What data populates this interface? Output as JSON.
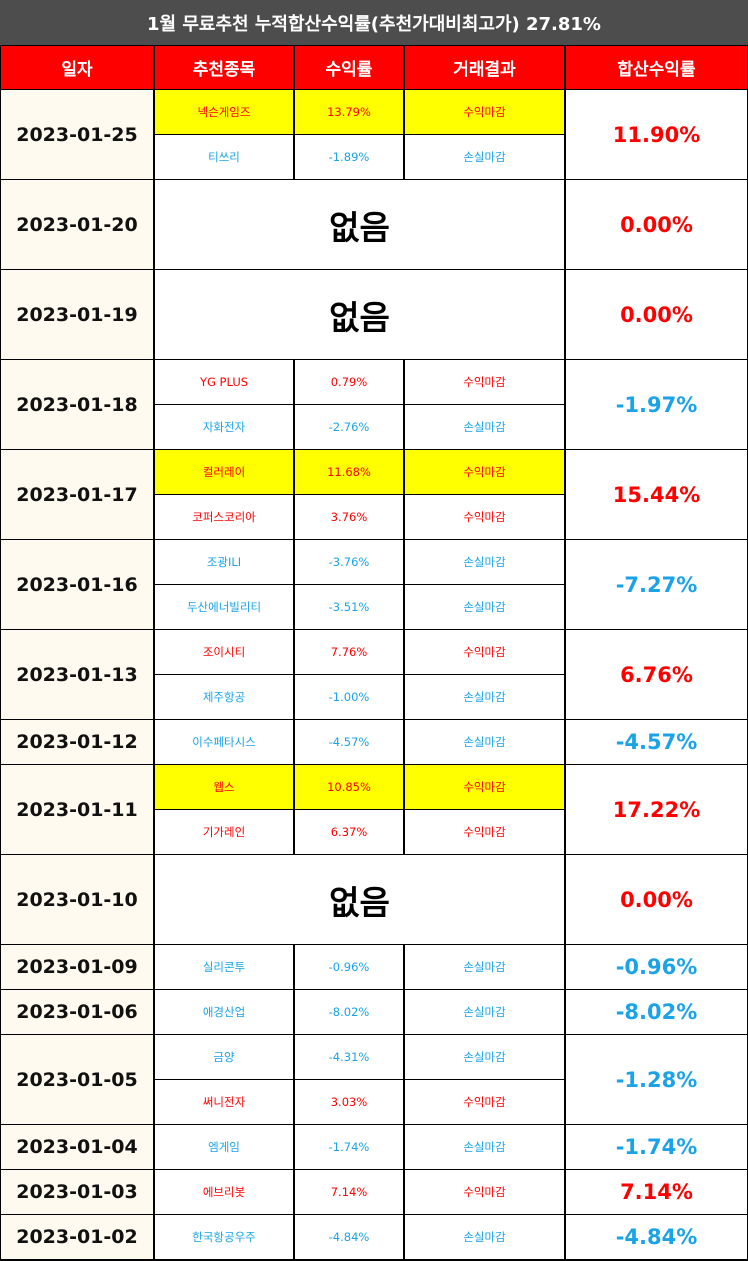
{
  "title": "1월 무료추천 누적합산수익률(추천가대비최고가) 27.81%",
  "headers": [
    "일자",
    "추천종목",
    "수익률",
    "거래결과",
    "합산수익률"
  ],
  "colors": {
    "profit": "#ff0000",
    "loss": "#1aa3e8",
    "highlight": "#ffff00",
    "header_bg": "#ff0000",
    "title_bg": "#4d4d4d"
  },
  "rows": [
    {
      "date": "2023-01-25",
      "total": "11.90%",
      "total_type": "profit",
      "stocks": [
        {
          "name": "넥슨게임즈",
          "rate": "13.79%",
          "result": "수익마감",
          "type": "profit",
          "highlight": true
        },
        {
          "name": "티쓰리",
          "rate": "-1.89%",
          "result": "손실마감",
          "type": "loss",
          "highlight": false
        }
      ]
    },
    {
      "date": "2023-01-20",
      "total": "0.00%",
      "total_type": "profit",
      "none": "없음",
      "stocks": []
    },
    {
      "date": "2023-01-19",
      "total": "0.00%",
      "total_type": "profit",
      "none": "없음",
      "stocks": []
    },
    {
      "date": "2023-01-18",
      "total": "-1.97%",
      "total_type": "loss",
      "stocks": [
        {
          "name": "YG PLUS",
          "rate": "0.79%",
          "result": "수익마감",
          "type": "profit",
          "highlight": false
        },
        {
          "name": "자화전자",
          "rate": "-2.76%",
          "result": "손실마감",
          "type": "loss",
          "highlight": false
        }
      ]
    },
    {
      "date": "2023-01-17",
      "total": "15.44%",
      "total_type": "profit",
      "stocks": [
        {
          "name": "컬러레이",
          "rate": "11.68%",
          "result": "수익마감",
          "type": "profit",
          "highlight": true
        },
        {
          "name": "코퍼스코리아",
          "rate": "3.76%",
          "result": "수익마감",
          "type": "profit",
          "highlight": false
        }
      ]
    },
    {
      "date": "2023-01-16",
      "total": "-7.27%",
      "total_type": "loss",
      "stocks": [
        {
          "name": "조광ILI",
          "rate": "-3.76%",
          "result": "손실마감",
          "type": "loss",
          "highlight": false
        },
        {
          "name": "두산에너빌리티",
          "rate": "-3.51%",
          "result": "손실마감",
          "type": "loss",
          "highlight": false
        }
      ]
    },
    {
      "date": "2023-01-13",
      "total": "6.76%",
      "total_type": "profit",
      "stocks": [
        {
          "name": "조이시티",
          "rate": "7.76%",
          "result": "수익마감",
          "type": "profit",
          "highlight": false
        },
        {
          "name": "제주항공",
          "rate": "-1.00%",
          "result": "손실마감",
          "type": "loss",
          "highlight": false
        }
      ]
    },
    {
      "date": "2023-01-12",
      "total": "-4.57%",
      "total_type": "loss",
      "stocks": [
        {
          "name": "이수페타시스",
          "rate": "-4.57%",
          "result": "손실마감",
          "type": "loss",
          "highlight": false
        }
      ]
    },
    {
      "date": "2023-01-11",
      "total": "17.22%",
      "total_type": "profit",
      "stocks": [
        {
          "name": "웹스",
          "rate": "10.85%",
          "result": "수익마감",
          "type": "profit",
          "highlight": true
        },
        {
          "name": "기가레인",
          "rate": "6.37%",
          "result": "수익마감",
          "type": "profit",
          "highlight": false
        }
      ]
    },
    {
      "date": "2023-01-10",
      "total": "0.00%",
      "total_type": "profit",
      "none": "없음",
      "stocks": []
    },
    {
      "date": "2023-01-09",
      "total": "-0.96%",
      "total_type": "loss",
      "stocks": [
        {
          "name": "실리콘투",
          "rate": "-0.96%",
          "result": "손실마감",
          "type": "loss",
          "highlight": false
        }
      ]
    },
    {
      "date": "2023-01-06",
      "total": "-8.02%",
      "total_type": "loss",
      "stocks": [
        {
          "name": "애경산업",
          "rate": "-8.02%",
          "result": "손실마감",
          "type": "loss",
          "highlight": false
        }
      ]
    },
    {
      "date": "2023-01-05",
      "total": "-1.28%",
      "total_type": "loss",
      "stocks": [
        {
          "name": "금양",
          "rate": "-4.31%",
          "result": "손실마감",
          "type": "loss",
          "highlight": false
        },
        {
          "name": "써니전자",
          "rate": "3.03%",
          "result": "수익마감",
          "type": "profit",
          "highlight": false
        }
      ]
    },
    {
      "date": "2023-01-04",
      "total": "-1.74%",
      "total_type": "loss",
      "stocks": [
        {
          "name": "엠게임",
          "rate": "-1.74%",
          "result": "손실마감",
          "type": "loss",
          "highlight": false
        }
      ]
    },
    {
      "date": "2023-01-03",
      "total": "7.14%",
      "total_type": "profit",
      "stocks": [
        {
          "name": "에브리봇",
          "rate": "7.14%",
          "result": "수익마감",
          "type": "profit",
          "highlight": false
        }
      ]
    },
    {
      "date": "2023-01-02",
      "total": "-4.84%",
      "total_type": "loss",
      "stocks": [
        {
          "name": "한국항공우주",
          "rate": "-4.84%",
          "result": "손실마감",
          "type": "loss",
          "highlight": false
        }
      ]
    }
  ]
}
